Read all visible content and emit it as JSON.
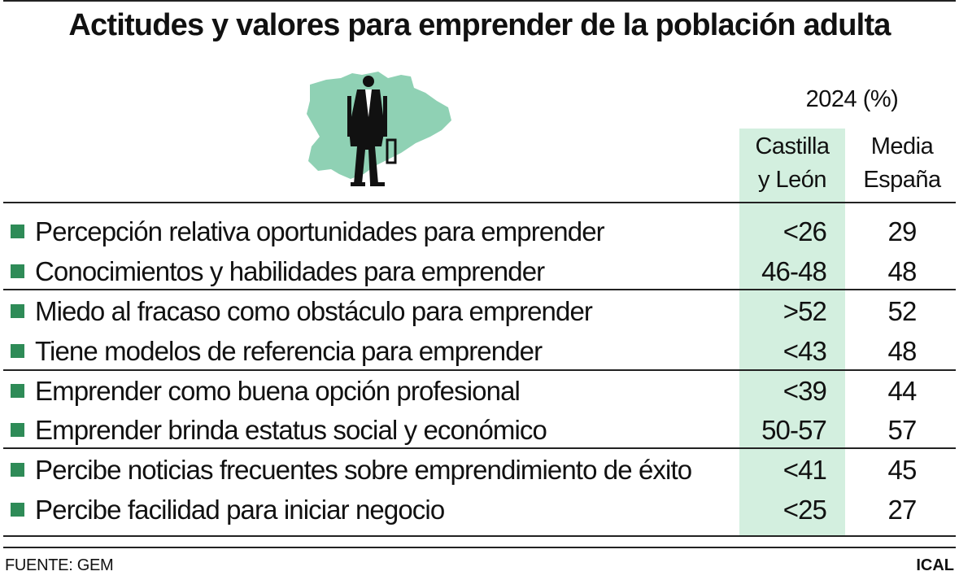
{
  "title": "Actitudes y valores para emprender de la población adulta",
  "header": {
    "year_label": "2024 (%)",
    "col_cyl_line1": "Castilla",
    "col_cyl_line2": "y León",
    "col_esp_line1": "Media",
    "col_esp_line2": "España"
  },
  "colors": {
    "accent_band": "#d3efdf",
    "bullet": "#2e8b57",
    "map_fill": "#8fd1b4"
  },
  "chart_data": {
    "type": "table",
    "title": "Actitudes y valores para emprender de la población adulta",
    "unit": "2024 (%)",
    "columns": [
      "Castilla y León",
      "Media España"
    ],
    "rows": [
      {
        "label": "Percepción relativa oportunidades para emprender",
        "cyl": "<26",
        "esp": "29"
      },
      {
        "label": "Conocimientos y habilidades para emprender",
        "cyl": "46-48",
        "esp": "48"
      },
      {
        "label": "Miedo al fracaso como obstáculo para emprender",
        "cyl": ">52",
        "esp": "52"
      },
      {
        "label": "Tiene modelos de referencia para emprender",
        "cyl": "<43",
        "esp": "48"
      },
      {
        "label": "Emprender como buena opción profesional",
        "cyl": "<39",
        "esp": "44"
      },
      {
        "label": "Emprender brinda estatus social y económico",
        "cyl": "50-57",
        "esp": "57"
      },
      {
        "label": "Percibe noticias frecuentes sobre emprendimiento de éxito",
        "cyl": "<41",
        "esp": "45"
      },
      {
        "label": "Percibe facilidad para iniciar negocio",
        "cyl": "<25",
        "esp": "27"
      }
    ]
  },
  "footer": {
    "source": "FUENTE: GEM",
    "brand": "ICAL"
  }
}
